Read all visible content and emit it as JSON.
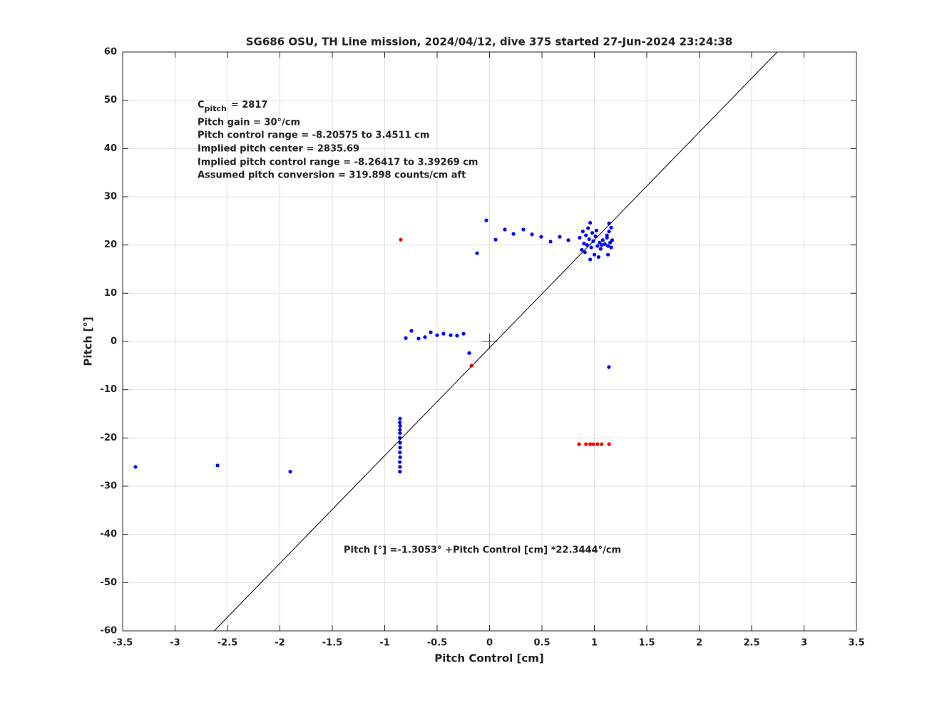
{
  "chart_data": {
    "type": "scatter",
    "title": "SG686 OSU, TH Line mission, 2024/04/12, dive 375 started 27-Jun-2024 23:24:38",
    "x_label": "Pitch Control [cm]",
    "y_label": "Pitch [°]",
    "xlim": [
      -3.5,
      3.5
    ],
    "ylim": [
      -60,
      60
    ],
    "xticks": [
      -3.5,
      -3,
      -2.5,
      -2,
      -1.5,
      -1,
      -0.5,
      0,
      0.5,
      1,
      1.5,
      2,
      2.5,
      3,
      3.5
    ],
    "yticks": [
      -60,
      -50,
      -40,
      -30,
      -20,
      -10,
      0,
      10,
      20,
      30,
      40,
      50,
      60
    ],
    "grid": true,
    "cpitch": {
      "symbol": "C",
      "subscript": "pitch",
      "text": "= 2817"
    },
    "annotations": [
      "Pitch gain = 30°/cm",
      "Pitch control range = -8.20575 to 3.4511 cm",
      "Implied pitch center = 2835.69",
      "Implied pitch control range = -8.26417 to 3.39269 cm",
      "Assumed pitch conversion = 319.898 counts/cm aft"
    ],
    "fit_label": "Pitch [°] =-1.3053° +Pitch Control [cm] *22.3444°/cm",
    "series": [
      {
        "color": "#0000ff",
        "marker": "dot",
        "x": [
          -3.378,
          -2.595,
          -1.901,
          -0.854,
          -0.856,
          -0.853,
          -0.855,
          -0.854,
          -0.856,
          -0.853,
          -0.854,
          -0.855,
          -0.853,
          -0.856,
          -0.854,
          -0.855,
          -0.799,
          -0.745,
          -0.677,
          -0.616,
          -0.561,
          -0.5,
          -0.439,
          -0.371,
          -0.31,
          -0.248,
          -0.194,
          -0.119,
          -0.031,
          0.058,
          0.146,
          0.228,
          0.323,
          0.405,
          0.493,
          0.582,
          0.67,
          0.752,
          0.86,
          0.88,
          0.89,
          0.9,
          0.91,
          0.92,
          0.93,
          0.94,
          0.95,
          0.96,
          0.96,
          0.97,
          0.98,
          0.99,
          1.0,
          1.01,
          1.02,
          1.03,
          1.04,
          1.05,
          1.06,
          1.07,
          1.08,
          1.1,
          1.12,
          1.13,
          1.14,
          1.15,
          1.16,
          1.17,
          1.16,
          1.12,
          1.139,
          1.14,
          1.13
        ],
        "values": [
          -26.0,
          -25.7,
          -27.0,
          -16.0,
          -16.8,
          -17.5,
          -18.3,
          -19.0,
          -20.0,
          -21.0,
          -22.0,
          -23.0,
          -24.0,
          -25.0,
          -26.0,
          -27.0,
          0.7,
          2.2,
          0.6,
          0.9,
          1.9,
          1.3,
          1.6,
          1.3,
          1.2,
          1.6,
          -2.4,
          18.3,
          25.1,
          21.1,
          23.2,
          22.3,
          23.2,
          22.2,
          21.7,
          20.7,
          21.7,
          21.0,
          21.5,
          19.0,
          22.8,
          20.3,
          18.5,
          22.0,
          20.0,
          23.5,
          21.2,
          17.0,
          24.6,
          19.5,
          22.5,
          20.8,
          18.0,
          21.8,
          23.0,
          19.8,
          17.5,
          20.5,
          19.2,
          20.0,
          21.0,
          20.2,
          21.5,
          19.8,
          22.8,
          20.5,
          23.6,
          21.0,
          19.5,
          22.0,
          -5.3,
          24.5,
          18.0
        ]
      },
      {
        "color": "#ff0000",
        "marker": "dot",
        "x": [
          -0.847,
          -0.173,
          0.854,
          0.92,
          0.96,
          0.99,
          1.03,
          1.07,
          1.14
        ],
        "values": [
          21.1,
          -5.0,
          -21.3,
          -21.3,
          -21.3,
          -21.3,
          -21.3,
          -21.3,
          -21.3
        ]
      },
      {
        "color": "#ff0000",
        "marker": "plus",
        "x": [
          0
        ],
        "values": [
          0
        ]
      },
      {
        "color": "#000000",
        "marker": "line",
        "x": [
          -2.627,
          2.744
        ],
        "values": [
          -60,
          60
        ]
      }
    ]
  }
}
